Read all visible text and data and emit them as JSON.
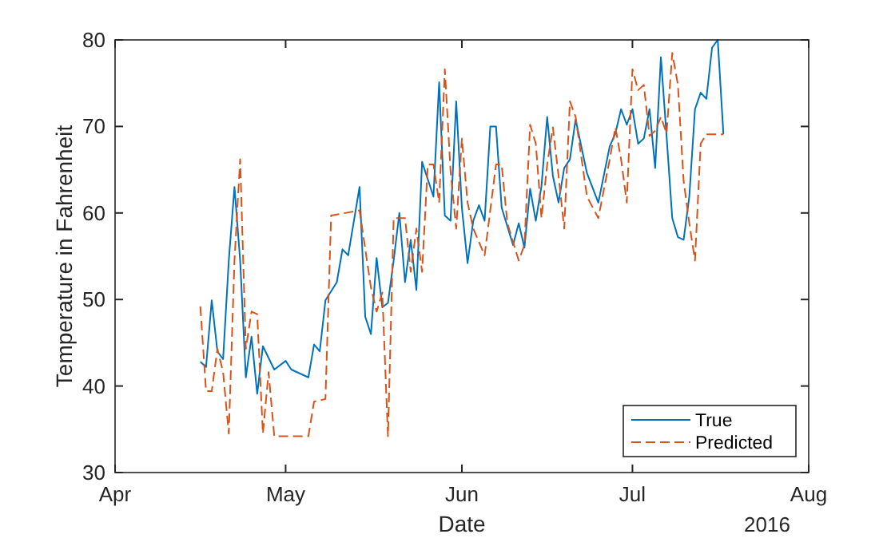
{
  "chart_data": {
    "type": "line",
    "xlabel": "Date",
    "ylabel": "Temperature in Fahrenheit",
    "annotations": [
      "2016"
    ],
    "xlim": [
      "2016-04-01",
      "2016-08-01"
    ],
    "xticks": [
      {
        "value": "2016-04-01",
        "label": "Apr"
      },
      {
        "value": "2016-05-01",
        "label": "May"
      },
      {
        "value": "2016-06-01",
        "label": "Jun"
      },
      {
        "value": "2016-07-01",
        "label": "Jul"
      },
      {
        "value": "2016-08-01",
        "label": "Aug"
      }
    ],
    "ylim": [
      30,
      80
    ],
    "yticks": [
      30,
      40,
      50,
      60,
      70,
      80
    ],
    "grid": false,
    "legend": "bottom right",
    "series": [
      {
        "name": "True",
        "color": "#0072bd",
        "line_style": "solid",
        "x": [
          "2016-04-16",
          "2016-04-17",
          "2016-04-18",
          "2016-04-19",
          "2016-04-20",
          "2016-04-21",
          "2016-04-22",
          "2016-04-23",
          "2016-04-24",
          "2016-04-25",
          "2016-04-26",
          "2016-04-27",
          "2016-04-29",
          "2016-05-01",
          "2016-05-02",
          "2016-05-05",
          "2016-05-06",
          "2016-05-07",
          "2016-05-08",
          "2016-05-10",
          "2016-05-11",
          "2016-05-12",
          "2016-05-14",
          "2016-05-15",
          "2016-05-16",
          "2016-05-17",
          "2016-05-18",
          "2016-05-19",
          "2016-05-20",
          "2016-05-21",
          "2016-05-22",
          "2016-05-23",
          "2016-05-24",
          "2016-05-25",
          "2016-05-27",
          "2016-05-28",
          "2016-05-29",
          "2016-05-30",
          "2016-05-31",
          "2016-06-01",
          "2016-06-02",
          "2016-06-03",
          "2016-06-04",
          "2016-06-05",
          "2016-06-06",
          "2016-06-07",
          "2016-06-08",
          "2016-06-10",
          "2016-06-11",
          "2016-06-12",
          "2016-06-13",
          "2016-06-14",
          "2016-06-15",
          "2016-06-16",
          "2016-06-17",
          "2016-06-18",
          "2016-06-19",
          "2016-06-20",
          "2016-06-21",
          "2016-06-23",
          "2016-06-25",
          "2016-06-27",
          "2016-06-28",
          "2016-06-29",
          "2016-06-30",
          "2016-07-01",
          "2016-07-02",
          "2016-07-03",
          "2016-07-04",
          "2016-07-05",
          "2016-07-06",
          "2016-07-07",
          "2016-07-08",
          "2016-07-09",
          "2016-07-10",
          "2016-07-11",
          "2016-07-12",
          "2016-07-13",
          "2016-07-14",
          "2016-07-15",
          "2016-07-16",
          "2016-07-17"
        ],
        "values": [
          42.8,
          42.2,
          49.9,
          44,
          43.1,
          54.5,
          63,
          54.5,
          41,
          45.7,
          39.1,
          44.6,
          41.9,
          42.9,
          41.9,
          41,
          44.8,
          44,
          49.9,
          52,
          55.8,
          55.1,
          63,
          48,
          46,
          54.8,
          49.1,
          49.6,
          54.5,
          60,
          52,
          56.9,
          51.1,
          65.9,
          61.9,
          75.1,
          59.7,
          59.1,
          72.9,
          60.6,
          54.2,
          59.1,
          60.9,
          59.1,
          70,
          70,
          60.6,
          56.3,
          58.8,
          56,
          62.8,
          59.1,
          63.1,
          71.1,
          64.3,
          61.2,
          65.2,
          66.2,
          70.8,
          64.6,
          61.2,
          67.7,
          69.2,
          72,
          70.2,
          72,
          68,
          68.6,
          72,
          65.2,
          78,
          68.9,
          59.4,
          57.2,
          56.9,
          61.9,
          72,
          73.9,
          73.2,
          79.1,
          80,
          69.1
        ]
      },
      {
        "name": "Predicted",
        "color": "#d95319",
        "line_style": "dashed",
        "x": [
          "2016-04-16",
          "2016-04-17",
          "2016-04-18",
          "2016-04-19",
          "2016-04-20",
          "2016-04-21",
          "2016-04-22",
          "2016-04-23",
          "2016-04-24",
          "2016-04-25",
          "2016-04-26",
          "2016-04-27",
          "2016-04-28",
          "2016-04-29",
          "2016-05-05",
          "2016-05-06",
          "2016-05-08",
          "2016-05-09",
          "2016-05-14",
          "2016-05-16",
          "2016-05-17",
          "2016-05-18",
          "2016-05-19",
          "2016-05-20",
          "2016-05-22",
          "2016-05-23",
          "2016-05-24",
          "2016-05-25",
          "2016-05-26",
          "2016-05-27",
          "2016-05-28",
          "2016-05-29",
          "2016-05-30",
          "2016-05-31",
          "2016-06-01",
          "2016-06-02",
          "2016-06-03",
          "2016-06-05",
          "2016-06-07",
          "2016-06-08",
          "2016-06-09",
          "2016-06-11",
          "2016-06-12",
          "2016-06-13",
          "2016-06-14",
          "2016-06-15",
          "2016-06-16",
          "2016-06-17",
          "2016-06-18",
          "2016-06-19",
          "2016-06-20",
          "2016-06-21",
          "2016-06-23",
          "2016-06-25",
          "2016-06-27",
          "2016-06-28",
          "2016-06-29",
          "2016-06-30",
          "2016-07-01",
          "2016-07-02",
          "2016-07-03",
          "2016-07-04",
          "2016-07-05",
          "2016-07-06",
          "2016-07-07",
          "2016-07-08",
          "2016-07-09",
          "2016-07-10",
          "2016-07-11",
          "2016-07-12",
          "2016-07-13",
          "2016-07-14",
          "2016-07-17"
        ],
        "values": [
          49.2,
          39.4,
          39.4,
          44.3,
          41.6,
          34.5,
          54.5,
          66.2,
          44.3,
          48.6,
          48.3,
          34.5,
          41.6,
          34.2,
          34.2,
          38.2,
          38.5,
          59.7,
          60.3,
          51.4,
          48.6,
          50.8,
          34.2,
          59.4,
          59.4,
          53.2,
          58.2,
          53.2,
          65.6,
          65.6,
          61.2,
          76.6,
          64.9,
          58.2,
          68.6,
          61.2,
          58.2,
          55.1,
          65.6,
          65.6,
          58.8,
          54.5,
          56.3,
          70.2,
          68,
          59.4,
          65.6,
          69.9,
          64.3,
          58.2,
          72.9,
          71.1,
          61.9,
          59.4,
          66.2,
          69.9,
          66.2,
          61.2,
          76.6,
          74.2,
          74.8,
          68.9,
          69.5,
          71.1,
          69.2,
          78.5,
          74.8,
          63.7,
          58.8,
          54.5,
          68,
          69.1,
          69.1
        ]
      }
    ]
  }
}
